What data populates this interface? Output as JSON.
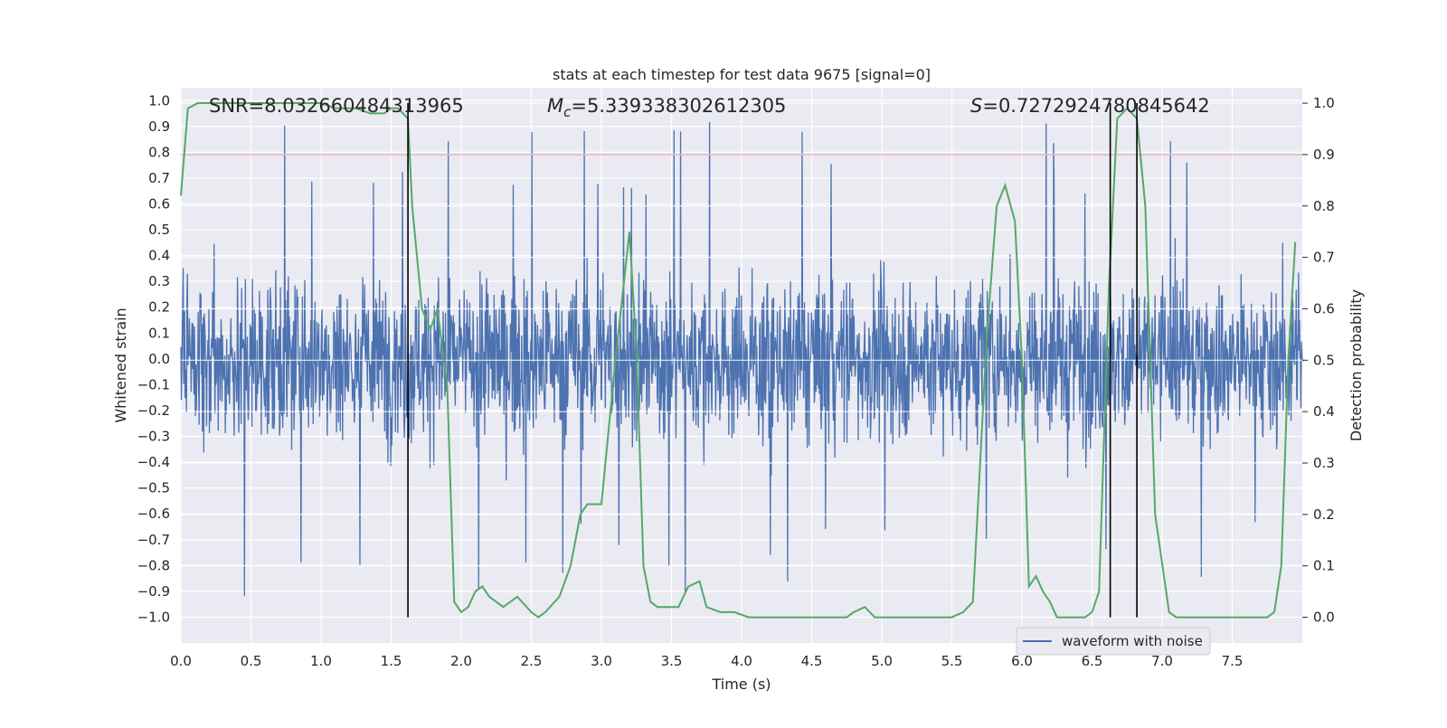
{
  "chart_data": {
    "type": "line",
    "title": "stats at each timestep for test data 9675 [signal=0]",
    "xlabel": "Time (s)",
    "ylabel_left": "Whitened strain",
    "ylabel_right": "Detection probability",
    "xlim": [
      0,
      8
    ],
    "ylim_left": [
      -1.1,
      1.05
    ],
    "ylim_right": [
      -0.05,
      1.03
    ],
    "x_ticks": [
      "0.0",
      "0.5",
      "1.0",
      "1.5",
      "2.0",
      "2.5",
      "3.0",
      "3.5",
      "4.0",
      "4.5",
      "5.0",
      "5.5",
      "6.0",
      "6.5",
      "7.0",
      "7.5"
    ],
    "y_ticks_left": [
      "1.0",
      "0.9",
      "0.8",
      "0.7",
      "0.6",
      "0.5",
      "0.4",
      "0.3",
      "0.2",
      "0.1",
      "0.0",
      "−0.1",
      "−0.2",
      "−0.3",
      "−0.4",
      "−0.5",
      "−0.6",
      "−0.7",
      "−0.8",
      "−0.9",
      "−1.0"
    ],
    "y_ticks_right": [
      "1.0",
      "0.9",
      "0.8",
      "0.7",
      "0.6",
      "0.5",
      "0.4",
      "0.3",
      "0.2",
      "0.1",
      "0.0"
    ],
    "grid": true,
    "legend_position": "lower-right",
    "annotations": {
      "snr": "SNR=8.032660484313965",
      "mc_symbol": "M",
      "mc_sub": "c",
      "mc_value": "=5.339338302612305",
      "s_symbol": "S",
      "s_value": "=0.7272924780845642"
    },
    "series": [
      {
        "name": "waveform with noise",
        "color": "#4c72b0",
        "description_value_range": [
          -1.0,
          0.94
        ]
      },
      {
        "color": "#55a868",
        "axis": "right",
        "x": [
          0.0,
          0.05,
          0.12,
          0.2,
          0.3,
          0.5,
          0.7,
          0.9,
          1.0,
          1.1,
          1.25,
          1.35,
          1.45,
          1.5,
          1.55,
          1.62,
          1.65,
          1.72,
          1.78,
          1.83,
          1.9,
          1.95,
          2.0,
          2.05,
          2.1,
          2.15,
          2.2,
          2.3,
          2.4,
          2.5,
          2.55,
          2.6,
          2.7,
          2.78,
          2.85,
          2.9,
          2.95,
          3.0,
          3.1,
          3.2,
          3.25,
          3.3,
          3.35,
          3.4,
          3.5,
          3.55,
          3.62,
          3.7,
          3.75,
          3.85,
          3.95,
          4.05,
          4.2,
          4.5,
          4.75,
          4.8,
          4.88,
          4.95,
          5.1,
          5.3,
          5.5,
          5.58,
          5.65,
          5.75,
          5.82,
          5.88,
          5.95,
          6.0,
          6.05,
          6.1,
          6.15,
          6.2,
          6.25,
          6.35,
          6.45,
          6.5,
          6.55,
          6.62,
          6.68,
          6.75,
          6.82,
          6.88,
          6.95,
          7.05,
          7.1,
          7.2,
          7.4,
          7.6,
          7.75,
          7.8,
          7.85,
          7.9,
          7.95
        ],
        "values": [
          0.82,
          0.99,
          1.0,
          1.0,
          1.0,
          1.0,
          1.0,
          1.0,
          1.0,
          0.99,
          0.99,
          0.98,
          0.98,
          0.99,
          0.99,
          0.97,
          0.8,
          0.6,
          0.56,
          0.6,
          0.45,
          0.03,
          0.01,
          0.02,
          0.05,
          0.06,
          0.04,
          0.02,
          0.04,
          0.01,
          0.0,
          0.01,
          0.04,
          0.1,
          0.2,
          0.22,
          0.22,
          0.22,
          0.5,
          0.75,
          0.52,
          0.1,
          0.03,
          0.02,
          0.02,
          0.02,
          0.06,
          0.07,
          0.02,
          0.01,
          0.01,
          0.0,
          0.0,
          0.0,
          0.0,
          0.01,
          0.02,
          0.0,
          0.0,
          0.0,
          0.0,
          0.01,
          0.03,
          0.55,
          0.8,
          0.84,
          0.77,
          0.5,
          0.06,
          0.08,
          0.05,
          0.03,
          0.0,
          0.0,
          0.0,
          0.01,
          0.05,
          0.64,
          0.97,
          0.99,
          0.97,
          0.8,
          0.2,
          0.01,
          0.0,
          0.0,
          0.0,
          0.0,
          0.0,
          0.01,
          0.1,
          0.5,
          0.73
        ]
      }
    ],
    "threshold": {
      "value": 0.9,
      "axis": "right",
      "color": "#c44e52"
    },
    "vlines": [
      1.62,
      6.63,
      6.82
    ]
  }
}
